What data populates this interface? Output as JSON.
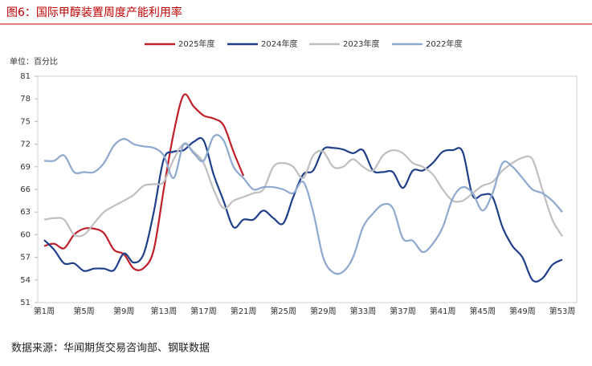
{
  "chart_data": {
    "type": "line",
    "title": "图6：国际甲醇装置周度产能利用率",
    "y_label": "单位：百分比",
    "source": "数据来源：华闻期货交易咨询部、钢联数据",
    "categories": [
      "第1周",
      null,
      null,
      null,
      "第5周",
      null,
      null,
      null,
      "第9周",
      null,
      null,
      null,
      "第13周",
      null,
      null,
      null,
      "第17周",
      null,
      null,
      null,
      "第21周",
      null,
      null,
      null,
      "第25周",
      null,
      null,
      null,
      "第29周",
      null,
      null,
      null,
      "第33周",
      null,
      null,
      null,
      "第37周",
      null,
      null,
      null,
      "第41周",
      null,
      null,
      null,
      "第45周",
      null,
      null,
      null,
      "第49周",
      null,
      null,
      null,
      "第53周"
    ],
    "ylim": [
      51,
      81
    ],
    "yticks": [
      51,
      54,
      57,
      60,
      63,
      66,
      69,
      72,
      75,
      78,
      81
    ],
    "grid": false,
    "legend_position": "top",
    "series": [
      {
        "name": "2025年度",
        "color": "#c0202a",
        "values": [
          58.5,
          58.8,
          58.2,
          60,
          60.8,
          60.8,
          60.2,
          58,
          57.4,
          55.5,
          55.6,
          58,
          66,
          73.5,
          78.5,
          77,
          75.8,
          75.4,
          74.5,
          71,
          67.8,
          null,
          null,
          null,
          null,
          null,
          null,
          null,
          null,
          null,
          null,
          null,
          null,
          null,
          null,
          null,
          null,
          null,
          null,
          null,
          null,
          null,
          null,
          null,
          null,
          null,
          null,
          null,
          null,
          null,
          null,
          null,
          null
        ]
      },
      {
        "name": "2024年度",
        "color": "#1f3f8a",
        "values": [
          59.3,
          58,
          56.2,
          56.2,
          55.2,
          55.5,
          55.5,
          55.3,
          57.5,
          56.3,
          57.5,
          63,
          70,
          71,
          71.2,
          72.3,
          72.5,
          68,
          64.5,
          61,
          62,
          62,
          63.2,
          62.2,
          61.5,
          65,
          68,
          68.5,
          71.3,
          71.5,
          71.3,
          70.8,
          71.2,
          68.5,
          68.3,
          68.3,
          66.2,
          68.5,
          68.5,
          69.5,
          71,
          71.2,
          71,
          65.2,
          65.3,
          65,
          61,
          58.5,
          57,
          54,
          54.2,
          56,
          56.7
        ]
      },
      {
        "name": "2023年度",
        "color": "#bfbfbf",
        "values": [
          62,
          62.2,
          62,
          60,
          60,
          61.5,
          63,
          63.8,
          64.5,
          65.3,
          66.5,
          66.7,
          67,
          70,
          72,
          71,
          69.5,
          66,
          63.5,
          64.5,
          65,
          65.5,
          66,
          69,
          69.5,
          69,
          67.5,
          70.5,
          71,
          69,
          69,
          70,
          69,
          68.5,
          70.5,
          71.2,
          70.8,
          69.5,
          69,
          68,
          66,
          64.5,
          64.5,
          65.5,
          66.5,
          67,
          68.5,
          69.5,
          70.2,
          70,
          66,
          62,
          59.8
        ]
      },
      {
        "name": "2022年度",
        "color": "#8ea9cf",
        "values": [
          69.8,
          69.8,
          70.5,
          68.3,
          68.3,
          68.3,
          69.5,
          71.8,
          72.7,
          72,
          71.7,
          71.5,
          70.5,
          67.5,
          72,
          70.8,
          69.8,
          73,
          72.5,
          69,
          67.5,
          66,
          66.3,
          66.3,
          66,
          65.5,
          67,
          63,
          57,
          55,
          55.1,
          57,
          61,
          62.8,
          64,
          63.5,
          59.5,
          59.2,
          57.7,
          58.8,
          61,
          64.8,
          66.3,
          65.5,
          63.2,
          65.5,
          69.5,
          69,
          67.5,
          66,
          65.5,
          64.5,
          63
        ]
      }
    ]
  }
}
